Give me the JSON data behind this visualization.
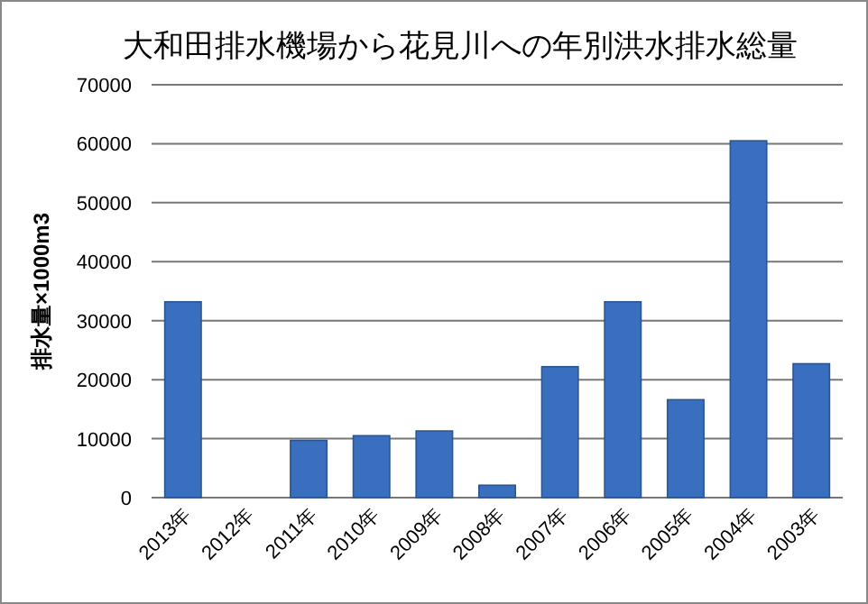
{
  "chart_data": {
    "type": "bar",
    "title": "大和田排水機場から花見川への年別洪水排水総量",
    "ylabel": "排水量×1000m3",
    "categories": [
      "2013年",
      "2012年",
      "2011年",
      "2010年",
      "2009年",
      "2008年",
      "2007年",
      "2006年",
      "2005年",
      "2004年",
      "2003年"
    ],
    "values": [
      33200,
      0,
      9700,
      10500,
      11300,
      2100,
      22200,
      33200,
      16600,
      60500,
      22700
    ],
    "color": "#3a6fc0",
    "ylim": [
      0,
      70000
    ],
    "yticks": [
      0,
      10000,
      20000,
      30000,
      40000,
      50000,
      60000,
      70000
    ],
    "grid": "y"
  }
}
